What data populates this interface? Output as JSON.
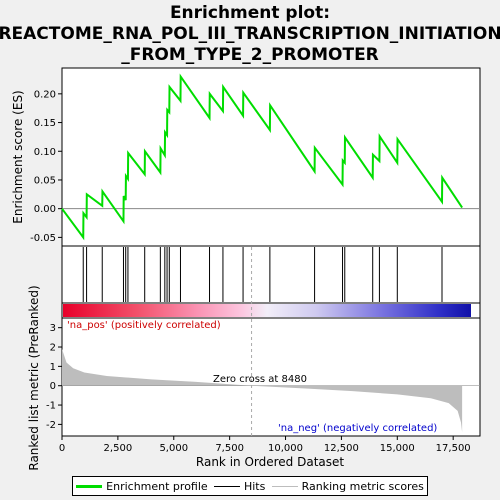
{
  "chart_data": {
    "type": "line",
    "title_lines": [
      "Enrichment plot:",
      "REACTOME_RNA_POL_III_TRANSCRIPTION_INITIATION",
      "_FROM_TYPE_2_PROMOTER"
    ],
    "xlabel": "Rank in Ordered Dataset",
    "ylabel_top": "Enrichment score (ES)",
    "ylabel_bottom": "Ranked list metric (PreRanked)",
    "xlim": [
      0,
      18700
    ],
    "x_ticks": [
      0,
      2500,
      5000,
      7500,
      10000,
      12500,
      15000,
      17500
    ],
    "es_ylim": [
      -0.065,
      0.245
    ],
    "es_ticks": [
      -0.05,
      0.0,
      0.05,
      0.1,
      0.15,
      0.2
    ],
    "es_tick_labels": [
      "-0.05",
      "0.00",
      "0.05",
      "0.10",
      "0.15",
      "0.20"
    ],
    "metric_ylim": [
      -2.6,
      3.5
    ],
    "metric_ticks": [
      -2,
      -1,
      0,
      1,
      2,
      3
    ],
    "hits": [
      950,
      1100,
      1800,
      2750,
      2850,
      2950,
      3700,
      4400,
      4600,
      4700,
      4800,
      5300,
      6600,
      7200,
      8100,
      9300,
      11300,
      12550,
      12650,
      13900,
      14200,
      15000,
      17000
    ],
    "es_profile": [
      [
        0,
        0.0
      ],
      [
        950,
        -0.05
      ],
      [
        960,
        -0.008
      ],
      [
        1100,
        -0.015
      ],
      [
        1110,
        0.025
      ],
      [
        1800,
        0.005
      ],
      [
        1810,
        0.03
      ],
      [
        2750,
        -0.022
      ],
      [
        2760,
        0.022
      ],
      [
        2850,
        0.015
      ],
      [
        2860,
        0.057
      ],
      [
        2950,
        0.052
      ],
      [
        2960,
        0.097
      ],
      [
        3700,
        0.06
      ],
      [
        3710,
        0.1
      ],
      [
        4400,
        0.063
      ],
      [
        4410,
        0.105
      ],
      [
        4600,
        0.093
      ],
      [
        4610,
        0.133
      ],
      [
        4700,
        0.128
      ],
      [
        4710,
        0.172
      ],
      [
        4800,
        0.168
      ],
      [
        4810,
        0.212
      ],
      [
        5300,
        0.188
      ],
      [
        5310,
        0.23
      ],
      [
        6600,
        0.158
      ],
      [
        6610,
        0.2
      ],
      [
        7200,
        0.17
      ],
      [
        7210,
        0.212
      ],
      [
        8100,
        0.162
      ],
      [
        8110,
        0.202
      ],
      [
        9300,
        0.137
      ],
      [
        9310,
        0.18
      ],
      [
        11300,
        0.065
      ],
      [
        11310,
        0.106
      ],
      [
        12550,
        0.042
      ],
      [
        12560,
        0.084
      ],
      [
        12650,
        0.08
      ],
      [
        12660,
        0.124
      ],
      [
        13900,
        0.054
      ],
      [
        13910,
        0.094
      ],
      [
        14200,
        0.083
      ],
      [
        14210,
        0.126
      ],
      [
        15000,
        0.08
      ],
      [
        15010,
        0.121
      ],
      [
        17000,
        0.012
      ],
      [
        17010,
        0.054
      ],
      [
        17900,
        0.002
      ]
    ],
    "metric_shape": [
      [
        0,
        1.9
      ],
      [
        200,
        1.2
      ],
      [
        500,
        0.9
      ],
      [
        1000,
        0.68
      ],
      [
        2000,
        0.5
      ],
      [
        4000,
        0.33
      ],
      [
        6000,
        0.2
      ],
      [
        8480,
        0.0
      ],
      [
        11000,
        -0.15
      ],
      [
        13000,
        -0.28
      ],
      [
        15000,
        -0.45
      ],
      [
        16500,
        -0.65
      ],
      [
        17300,
        -0.9
      ],
      [
        17700,
        -1.3
      ],
      [
        17850,
        -1.9
      ],
      [
        17900,
        -2.4
      ]
    ],
    "zero_cross_rank": 8480,
    "annotations": {
      "pos": "'na_pos' (positively correlated)",
      "neg": "'na_neg' (negatively correlated)",
      "zero": "Zero cross at 8480"
    },
    "colors": {
      "es_line": "#00dd00",
      "hits": "#000000",
      "pos_text": "#cc0000",
      "neg_text": "#0000cc",
      "metric_fill": "#bdbdbd",
      "zero_line": "#aaaaaa"
    },
    "legend": [
      {
        "label": "Enrichment profile",
        "color": "#00dd00"
      },
      {
        "label": "Hits",
        "color": "#000000"
      },
      {
        "label": "Ranking metric scores",
        "color": "#bdbdbd"
      }
    ]
  }
}
